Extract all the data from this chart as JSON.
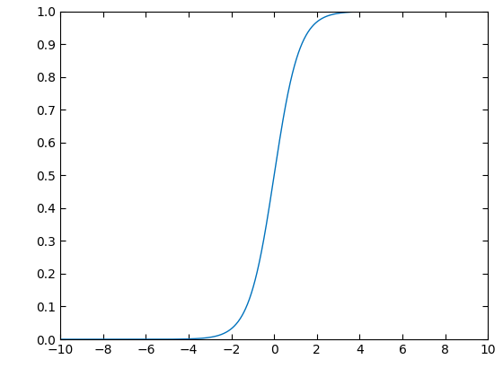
{
  "xlim": [
    -10,
    10
  ],
  "ylim": [
    0,
    1
  ],
  "xticks": [
    -10,
    -8,
    -6,
    -4,
    -2,
    0,
    2,
    4,
    6,
    8,
    10
  ],
  "yticks": [
    0,
    0.1,
    0.2,
    0.3,
    0.4,
    0.5,
    0.6,
    0.7,
    0.8,
    0.9,
    1.0
  ],
  "line_color": "#0072BD",
  "line_width": 1.0,
  "background_color": "#FFFFFF",
  "figsize": [
    5.6,
    4.2
  ],
  "dpi": 100,
  "sigmoid_scale": 1.7
}
